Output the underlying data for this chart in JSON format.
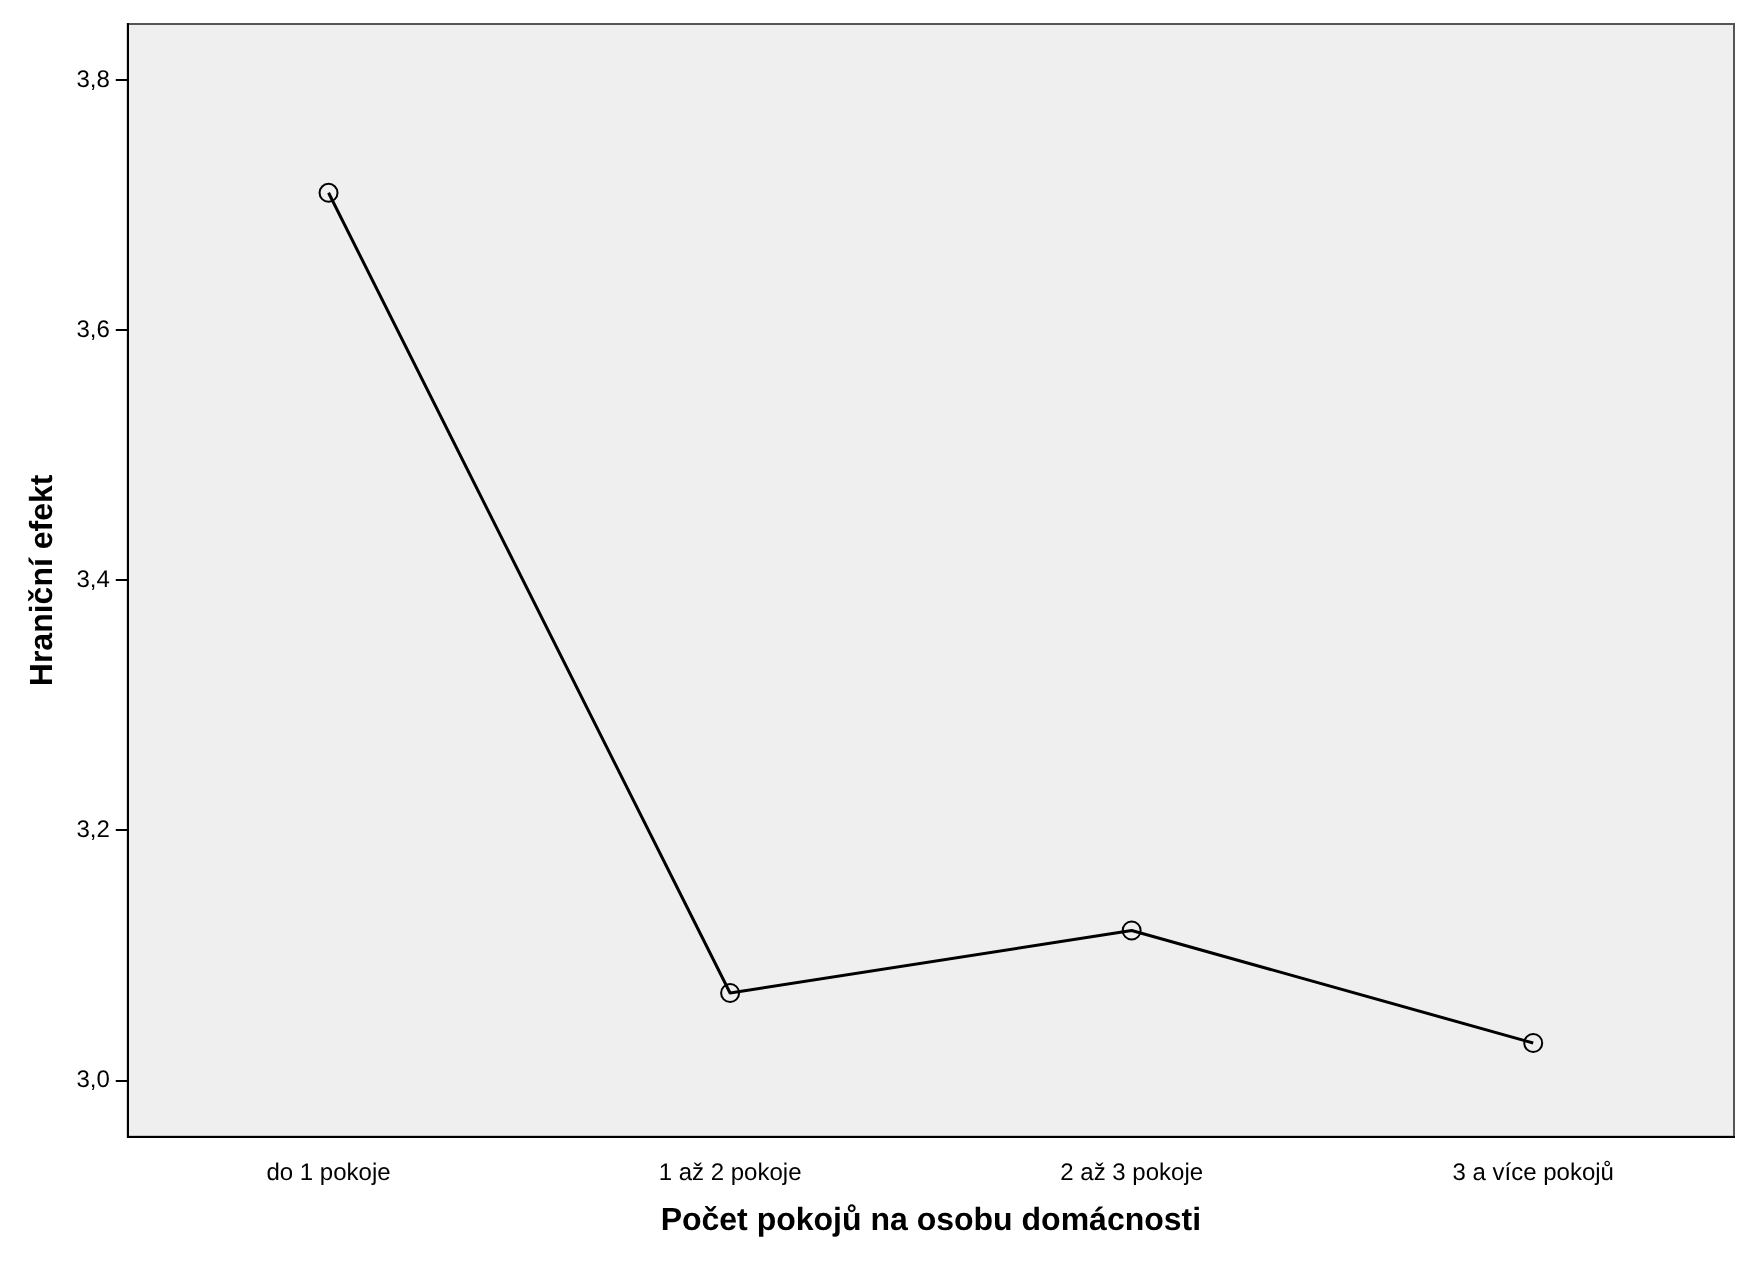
{
  "chart_data": {
    "type": "line",
    "xlabel": "Počet pokojů na osobu domácnosti",
    "ylabel": "Hraniční efekt",
    "categories": [
      "do 1 pokoje",
      "1 až 2 pokoje",
      "2 až 3 pokoje",
      "3 a více pokojů"
    ],
    "series": [
      {
        "color": "#000000",
        "values": [
          3.71,
          3.07,
          3.12,
          3.03
        ]
      }
    ],
    "ylim": [
      2.955,
      3.845
    ],
    "yticks": [
      {
        "value": 3.0,
        "label": "3,0"
      },
      {
        "value": 3.2,
        "label": "3,2"
      },
      {
        "value": 3.4,
        "label": "3,4"
      },
      {
        "value": 3.6,
        "label": "3,6"
      },
      {
        "value": 3.8,
        "label": "3,8"
      }
    ],
    "grid": false,
    "legend": false,
    "marker": "circle",
    "line_style": "solid"
  }
}
